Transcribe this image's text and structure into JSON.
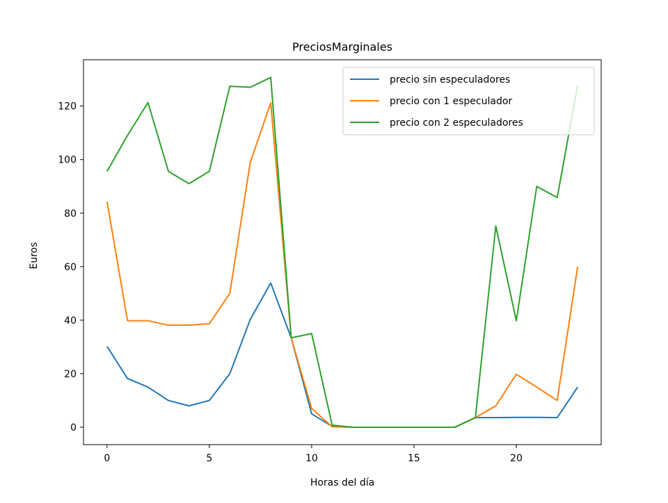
{
  "chart_data": {
    "type": "line",
    "title": "PreciosMarginales",
    "xlabel": "Horas del día",
    "ylabel": "Euros",
    "xlim": [
      -1.15,
      24.15
    ],
    "ylim": [
      -6.5,
      137.3
    ],
    "xticks": [
      0,
      5,
      10,
      15,
      20
    ],
    "yticks": [
      0,
      20,
      40,
      60,
      80,
      100,
      120
    ],
    "legend_position": "top-right",
    "grid": false,
    "x": [
      0,
      1,
      2,
      3,
      4,
      5,
      6,
      7,
      8,
      9,
      10,
      11,
      12,
      13,
      14,
      15,
      16,
      17,
      18,
      19,
      20,
      21,
      22,
      23
    ],
    "series": [
      {
        "name": "precio sin especuladores",
        "color": "#1f77b4",
        "values": [
          30.2,
          18.2,
          15.0,
          10.0,
          8.0,
          10.0,
          20.0,
          40.3,
          53.9,
          33.4,
          5.0,
          0.3,
          0.0,
          0.0,
          0.0,
          0.0,
          0.0,
          0.0,
          3.6,
          3.6,
          3.7,
          3.7,
          3.6,
          15.0
        ]
      },
      {
        "name": "precio con 1 especulador",
        "color": "#ff7f0e",
        "values": [
          84.3,
          39.8,
          39.8,
          38.1,
          38.1,
          38.7,
          50.0,
          99.0,
          121.2,
          33.4,
          7.0,
          0.2,
          0.0,
          0.0,
          0.0,
          0.0,
          0.0,
          0.0,
          3.6,
          8.0,
          19.8,
          15.0,
          10.0,
          60.0
        ]
      },
      {
        "name": "precio con 2 especuladores",
        "color": "#2ca02c",
        "values": [
          95.6,
          109.0,
          121.3,
          95.6,
          91.0,
          95.6,
          127.4,
          127.0,
          130.7,
          33.4,
          35.0,
          0.8,
          0.0,
          0.0,
          0.0,
          0.0,
          0.0,
          0.0,
          3.6,
          75.2,
          39.8,
          90.0,
          85.8,
          127.8
        ]
      }
    ]
  }
}
